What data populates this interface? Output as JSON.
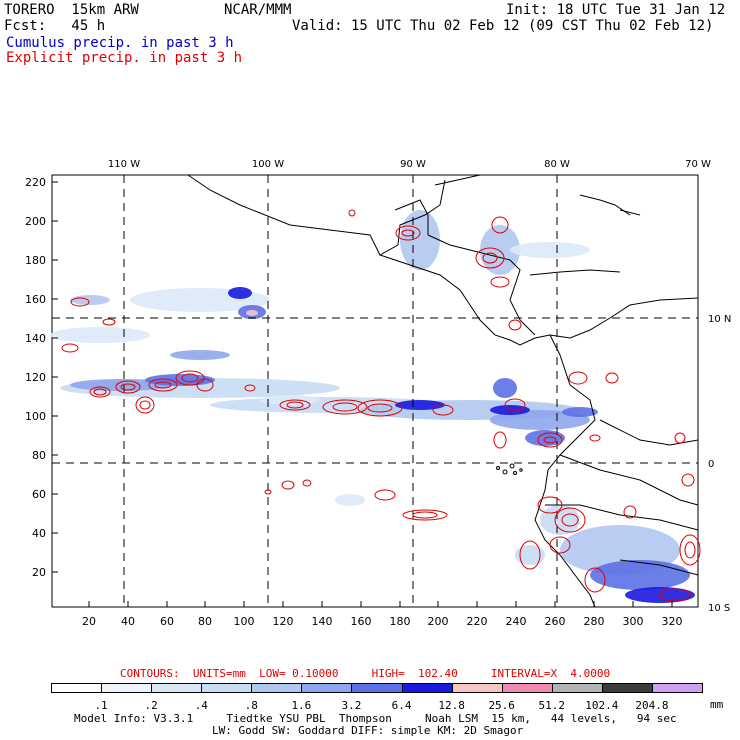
{
  "header": {
    "model": "TORERO  15km ARW",
    "org": "NCAR/MMM",
    "init": "Init: 18 UTC Tue 31 Jan 12",
    "fcst": "Fcst:   45 h",
    "valid": "Valid: 15 UTC Thu 02 Feb 12 (09 CST Thu 02 Feb 12)",
    "legend_cumulus": "Cumulus precip. in past 3 h",
    "legend_explicit": "Explicit precip. in past 3 h"
  },
  "colors": {
    "cumulus": "#0000c8",
    "explicit": "#e00000"
  },
  "map": {
    "top_lon_labels": [
      "110 W",
      "100 W",
      "90 W",
      "80 W",
      "70 W"
    ],
    "right_lat_labels": [
      "10 N",
      "0",
      "10 S"
    ],
    "y_ticks": [
      "20",
      "40",
      "60",
      "80",
      "100",
      "120",
      "140",
      "160",
      "180",
      "200",
      "220"
    ],
    "x_ticks": [
      "20",
      "40",
      "60",
      "80",
      "100",
      "120",
      "140",
      "160",
      "180",
      "200",
      "220",
      "240",
      "260",
      "280",
      "300",
      "320"
    ]
  },
  "footer": {
    "contours_label": "CONTOURS:  UNITS=mm  LOW= 0.10000     HIGH=  102.40     INTERVAL=X  4.0000",
    "colorbar_unit": "mm",
    "colorbar_values": [
      ".1",
      ".2",
      ".4",
      ".8",
      "1.6",
      "3.2",
      "6.4",
      "12.8",
      "25.6",
      "51.2",
      "102.4",
      "204.8"
    ],
    "colorbar_colors": [
      "#ffffff",
      "#eef4fb",
      "#dbe9f7",
      "#c8dcf3",
      "#b0c8f0",
      "#8ea6ec",
      "#5c70e6",
      "#1a1ade",
      "#f5c6c6",
      "#f08cb4",
      "#b4b4b4",
      "#3c3c3c",
      "#d2a0f0"
    ],
    "model_info_1": "Model Info: V3.3.1     Tiedtke YSU PBL  Thompson     Noah LSM  15 km,   44 levels,   94 sec",
    "model_info_2": "LW: Godd SW: Goddard DIFF: simple KM: 2D Smagor"
  }
}
